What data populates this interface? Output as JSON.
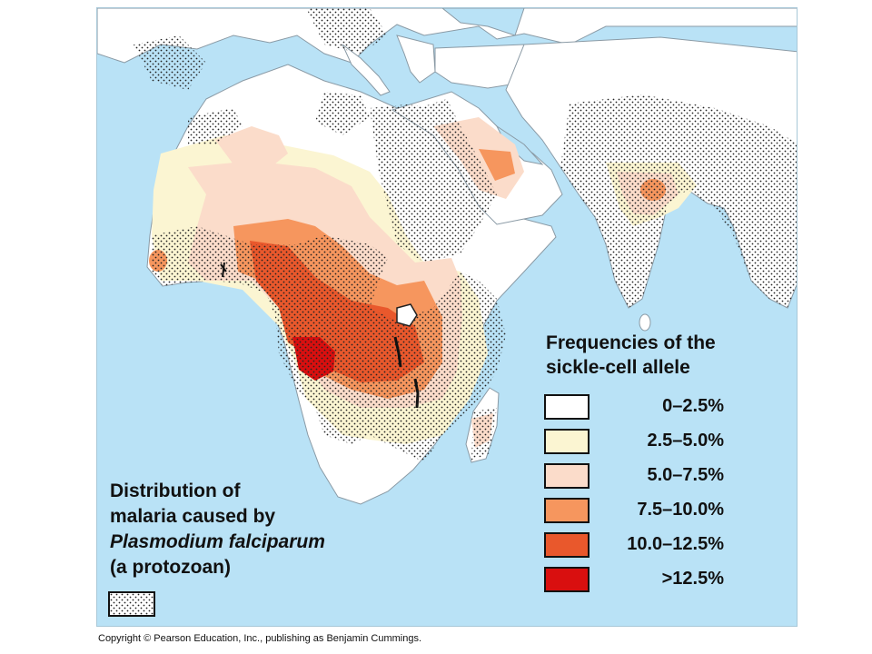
{
  "legend": {
    "title_line1": "Frequencies of the",
    "title_line2": "sickle-cell allele",
    "items": [
      {
        "label": "0–2.5%",
        "color": "#ffffff"
      },
      {
        "label": "2.5–5.0%",
        "color": "#fbf5d2"
      },
      {
        "label": "5.0–7.5%",
        "color": "#fbdcca"
      },
      {
        "label": "7.5–10.0%",
        "color": "#f6965e"
      },
      {
        "label": "10.0–12.5%",
        "color": "#e9582c"
      },
      {
        "label": ">12.5%",
        "color": "#d90f0f"
      }
    ]
  },
  "malaria": {
    "line1": "Distribution of",
    "line2": "malaria caused by",
    "line3": "Plasmodium falciparum",
    "line4": "(a protozoan)"
  },
  "colors": {
    "ocean": "#b9e2f6",
    "land": "#ffffff",
    "malaria_stipple": "#222222"
  },
  "copyright": "Copyright © Pearson Education, Inc., publishing as Benjamin Cummings."
}
